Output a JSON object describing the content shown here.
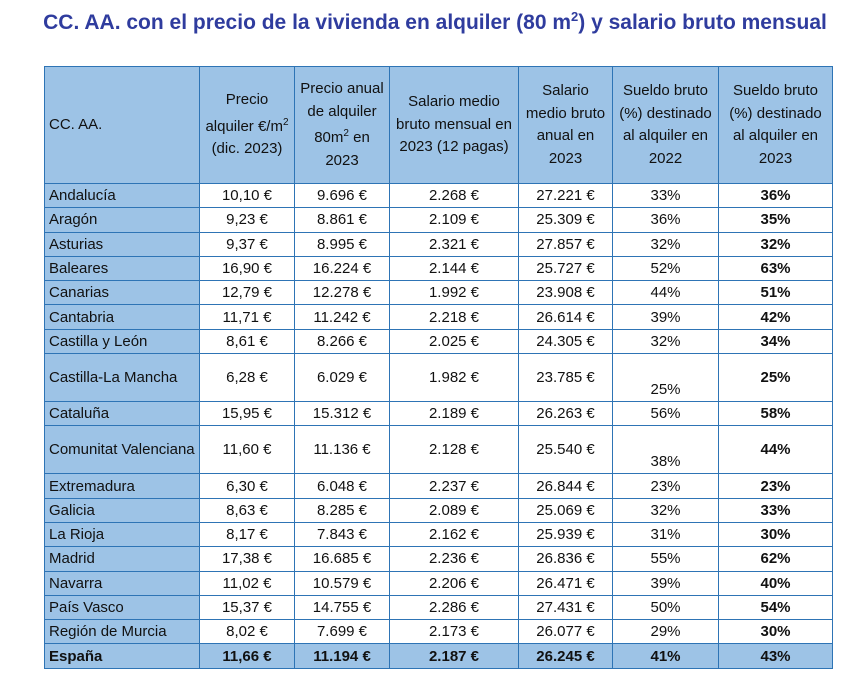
{
  "title": {
    "before": "CC. AA. con el precio de la vivienda en alquiler (80 m",
    "sup": "2",
    "after": ") y salario bruto mensual"
  },
  "headers": [
    {
      "text": "CC. AA."
    },
    {
      "before": "Precio alquiler €/m",
      "sup": "2",
      "after": " (dic. 2023)"
    },
    {
      "before": "Precio anual de alquiler 80m",
      "sup": "2",
      "after": " en 2023"
    },
    {
      "text": "Salario medio bruto mensual en 2023 (12 pagas)"
    },
    {
      "text": "Salario medio bruto anual en 2023"
    },
    {
      "text": "Sueldo bruto (%) destinado al alquiler en 2022"
    },
    {
      "text": "Sueldo bruto (%) destinado al alquiler en 2023"
    }
  ],
  "rows": [
    [
      "Andalucía",
      "10,10 €",
      "9.696 €",
      "2.268 €",
      "27.221 €",
      "33%",
      "36%"
    ],
    [
      "Aragón",
      "9,23 €",
      "8.861 €",
      "2.109 €",
      "25.309 €",
      "36%",
      "35%"
    ],
    [
      "Asturias",
      "9,37 €",
      "8.995 €",
      "2.321 €",
      "27.857 €",
      "32%",
      "32%"
    ],
    [
      "Baleares",
      "16,90 €",
      "16.224 €",
      "2.144 €",
      "25.727 €",
      "52%",
      "63%"
    ],
    [
      "Canarias",
      "12,79 €",
      "12.278 €",
      "1.992 €",
      "23.908 €",
      "44%",
      "51%"
    ],
    [
      "Cantabria",
      "11,71 €",
      "11.242 €",
      "2.218 €",
      "26.614 €",
      "39%",
      "42%"
    ],
    [
      "Castilla y León",
      "8,61 €",
      "8.266 €",
      "2.025 €",
      "24.305 €",
      "32%",
      "34%"
    ],
    [
      "Castilla-La Mancha",
      "6,28 €",
      "6.029 €",
      "1.982 €",
      "23.785 €",
      "25%",
      "25%"
    ],
    [
      "Cataluña",
      "15,95 €",
      "15.312 €",
      "2.189 €",
      "26.263 €",
      "56%",
      "58%"
    ],
    [
      "Comunitat Valenciana",
      "11,60 €",
      "11.136 €",
      "2.128 €",
      "25.540 €",
      "38%",
      "44%"
    ],
    [
      "Extremadura",
      "6,30 €",
      "6.048 €",
      "2.237 €",
      "26.844 €",
      "23%",
      "23%"
    ],
    [
      "Galicia",
      "8,63 €",
      "8.285 €",
      "2.089 €",
      "25.069 €",
      "32%",
      "33%"
    ],
    [
      "La Rioja",
      "8,17 €",
      "7.843 €",
      "2.162 €",
      "25.939 €",
      "31%",
      "30%"
    ],
    [
      "Madrid",
      "17,38 €",
      "16.685 €",
      "2.236 €",
      "26.836 €",
      "55%",
      "62%"
    ],
    [
      "Navarra",
      "11,02 €",
      "10.579 €",
      "2.206 €",
      "26.471 €",
      "39%",
      "40%"
    ],
    [
      "País Vasco",
      "15,37 €",
      "14.755 €",
      "2.286 €",
      "27.431 €",
      "50%",
      "54%"
    ],
    [
      "Región de Murcia",
      "8,02 €",
      "7.699 €",
      "2.173 €",
      "26.077 €",
      "29%",
      "30%"
    ]
  ],
  "total": [
    "España",
    "11,66 €",
    "11.194 €",
    "2.187 €",
    "26.245 €",
    "41%",
    "43%"
  ],
  "colors": {
    "header_bg": "#9DC3E6",
    "border": "#2E74B5",
    "title": "#2F3C9E"
  }
}
